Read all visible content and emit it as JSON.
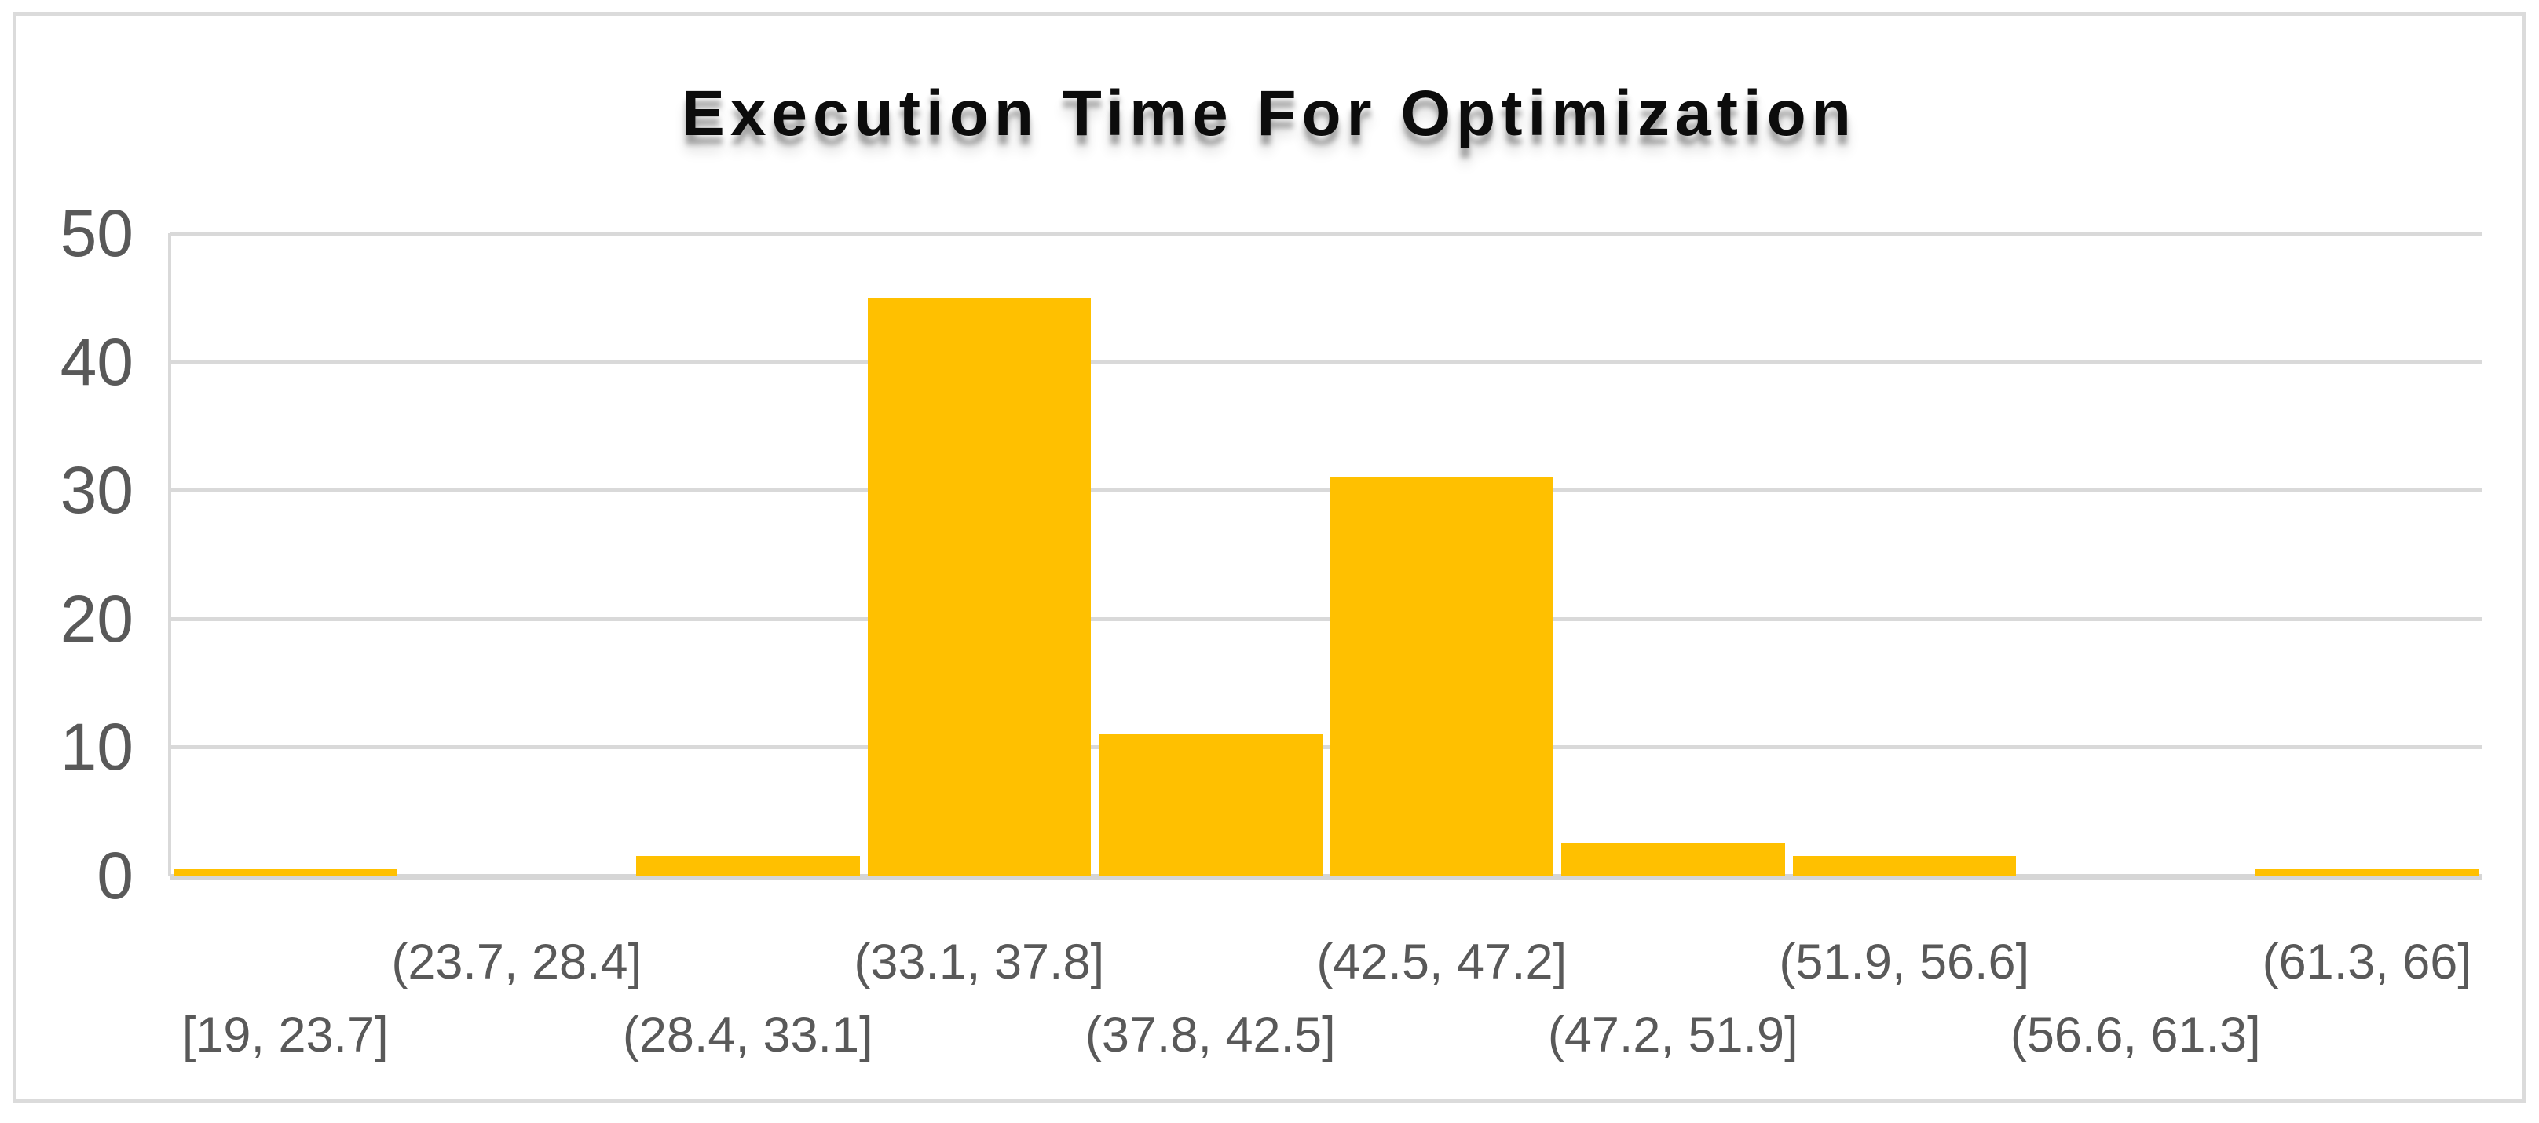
{
  "title": "Execution Time For Optimization",
  "chart_data": {
    "type": "bar",
    "title": "Execution Time For Optimization",
    "categories": [
      "[19, 23.7]",
      "(23.7, 28.4]",
      "(28.4, 33.1]",
      "(33.1, 37.8]",
      "(37.8, 42.5]",
      "(42.5, 47.2]",
      "(47.2, 51.9]",
      "(51.9, 56.6]",
      "(56.6, 61.3]",
      "(61.3, 66]"
    ],
    "values": [
      0.5,
      0,
      1.5,
      45,
      11,
      31,
      2.5,
      1.5,
      0,
      0.5
    ],
    "xlabel": "",
    "ylabel": "",
    "ylim": [
      0,
      50
    ],
    "yticks": [
      50,
      40,
      30,
      20,
      10,
      0
    ],
    "grid": true,
    "legend": false,
    "x_label_rows": "staggered-two-rows",
    "colors": {
      "bar": "#FFC000",
      "gridline": "#D9D9D9",
      "axis_baseline": "#D6D6D6",
      "frame_border": "#DBDBDB",
      "tick_label": "#595959",
      "title": "#0C0C0C",
      "background": "#FFFFFF"
    }
  }
}
